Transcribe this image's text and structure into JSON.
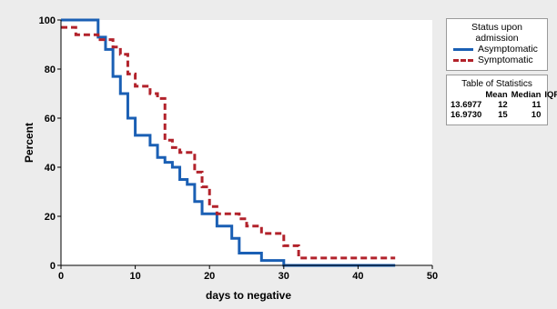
{
  "chart_data": {
    "type": "line",
    "step": true,
    "xlabel": "days to negative",
    "ylabel": "Percent",
    "xlim": [
      0,
      50
    ],
    "ylim": [
      0,
      100
    ],
    "x_ticks": [
      0,
      10,
      20,
      30,
      40,
      50
    ],
    "y_ticks": [
      0,
      20,
      40,
      60,
      80,
      100
    ],
    "grid": false,
    "legend": {
      "title": "Status upon admission",
      "placement": "top-right outside"
    },
    "series": [
      {
        "name": "Asymptomatic",
        "color": "#1a5fb4",
        "style": "solid",
        "x": [
          0,
          5,
          6,
          7,
          8,
          9,
          10,
          12,
          13,
          14,
          15,
          16,
          17,
          18,
          19,
          21,
          23,
          24,
          27,
          30,
          45
        ],
        "y": [
          100,
          93,
          88,
          77,
          70,
          60,
          53,
          49,
          44,
          42,
          40,
          35,
          33,
          26,
          21,
          16,
          11,
          5,
          2,
          0,
          0
        ]
      },
      {
        "name": "Symptomatic",
        "color": "#b2222b",
        "style": "dashed",
        "x": [
          0,
          2,
          5,
          7,
          8,
          9,
          10,
          12,
          13,
          14,
          15,
          16,
          18,
          19,
          20,
          21,
          24,
          25,
          27,
          30,
          32,
          45
        ],
        "y": [
          97,
          94,
          92,
          89,
          86,
          78,
          73,
          70,
          68,
          51,
          48,
          46,
          38,
          32,
          24,
          21,
          19,
          16,
          13,
          8,
          3,
          3
        ]
      }
    ],
    "stats_table": {
      "title": "Table of Statistics",
      "columns": [
        "Mean",
        "Median",
        "IQR"
      ],
      "rows": [
        [
          "13.6977",
          "12",
          "11"
        ],
        [
          "16.9730",
          "15",
          "10"
        ]
      ]
    }
  }
}
